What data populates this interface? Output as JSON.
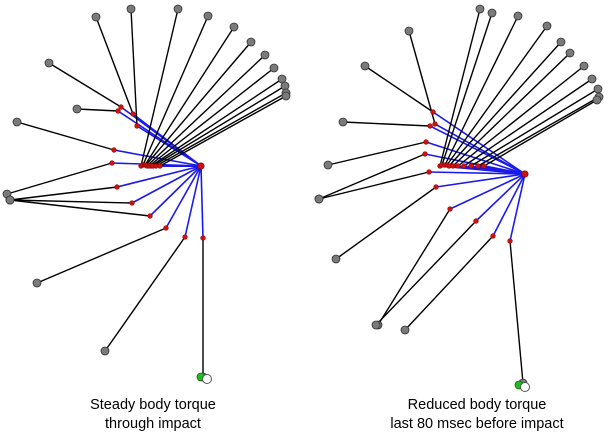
{
  "figure": {
    "panels": [
      {
        "caption": [
          "Steady body torque",
          "through impact"
        ],
        "frames": [
          [
            [
              141,
              166
            ],
            [
              178,
              9
            ]
          ],
          [
            [
              143,
              165
            ],
            [
              208,
              16
            ]
          ],
          [
            [
              145,
              165
            ],
            [
              234,
              27
            ]
          ],
          [
            [
              146,
              165
            ],
            [
              251,
              42
            ]
          ],
          [
            [
              147,
              166
            ],
            [
              265,
              55
            ]
          ],
          [
            [
              149,
              166
            ],
            [
              274,
              68
            ]
          ],
          [
            [
              151,
              166
            ],
            [
              282,
              79
            ]
          ],
          [
            [
              153,
              166
            ],
            [
              285,
              86
            ]
          ],
          [
            [
              156,
              166
            ],
            [
              286,
              93
            ]
          ],
          [
            [
              160,
              166
            ],
            [
              286,
              96
            ]
          ],
          [
            [
              137,
              126
            ],
            [
              131,
              9
            ]
          ],
          [
            [
              133,
              114
            ],
            [
              96,
              17
            ]
          ],
          [
            [
              121,
              107
            ],
            [
              49,
              63
            ]
          ],
          [
            [
              118,
              111
            ],
            [
              77,
              109
            ]
          ],
          [
            [
              114,
              150
            ],
            [
              17,
              122
            ]
          ],
          [
            [
              112,
              163
            ],
            [
              7,
              194
            ]
          ],
          [
            [
              117,
              187
            ],
            [
              10,
              200
            ]
          ],
          [
            [
              132,
              203
            ],
            [
              10,
              200
            ]
          ],
          [
            [
              150,
              216
            ],
            [
              10,
              200
            ]
          ],
          [
            [
              166,
              228
            ],
            [
              37,
              283
            ]
          ],
          [
            [
              185,
              237
            ],
            [
              105,
              351
            ]
          ],
          [
            [
              203,
              238
            ],
            [
              203,
              377
            ]
          ]
        ],
        "club_head": {
          "end": [
            205,
            378
          ]
        }
      },
      {
        "caption": [
          "Reduced body torque",
          "last 80 msec before impact"
        ],
        "frames": [
          [
            [
              132,
              166
            ],
            [
              172,
              9
            ]
          ],
          [
            [
              134,
              165
            ],
            [
              184,
              13
            ]
          ],
          [
            [
              137,
              165
            ],
            [
              210,
              16
            ]
          ],
          [
            [
              139,
              165
            ],
            [
              239,
              26
            ]
          ],
          [
            [
              141,
              166
            ],
            [
              253,
              42
            ]
          ],
          [
            [
              145,
              166
            ],
            [
              262,
              53
            ]
          ],
          [
            [
              150,
              166
            ],
            [
              276,
              66
            ]
          ],
          [
            [
              156,
              166
            ],
            [
              284,
              79
            ]
          ],
          [
            [
              163,
              166
            ],
            [
              290,
              89
            ]
          ],
          [
            [
              170,
              166
            ],
            [
              291,
              97
            ]
          ],
          [
            [
              176,
              166
            ],
            [
              289,
              100
            ]
          ],
          [
            [
              127,
              124
            ],
            [
              101,
              31
            ]
          ],
          [
            [
              125,
              112
            ],
            [
              57,
              66
            ]
          ],
          [
            [
              122,
              126
            ],
            [
              35,
              122
            ]
          ],
          [
            [
              118,
              142
            ],
            [
              20,
              165
            ]
          ],
          [
            [
              117,
              154
            ],
            [
              11,
              199
            ]
          ],
          [
            [
              121,
              172
            ],
            [
              11,
              199
            ]
          ],
          [
            [
              128,
              187
            ],
            [
              28,
              259
            ]
          ],
          [
            [
              142,
              209
            ],
            [
              70,
              325
            ]
          ],
          [
            [
              168,
              221
            ],
            [
              68,
              325
            ]
          ],
          [
            [
              185,
              236
            ],
            [
              97,
              330
            ]
          ],
          [
            [
              202,
              241
            ],
            [
              215,
              383
            ]
          ]
        ],
        "club_head": {
          "end": [
            215,
            386
          ]
        }
      }
    ]
  }
}
